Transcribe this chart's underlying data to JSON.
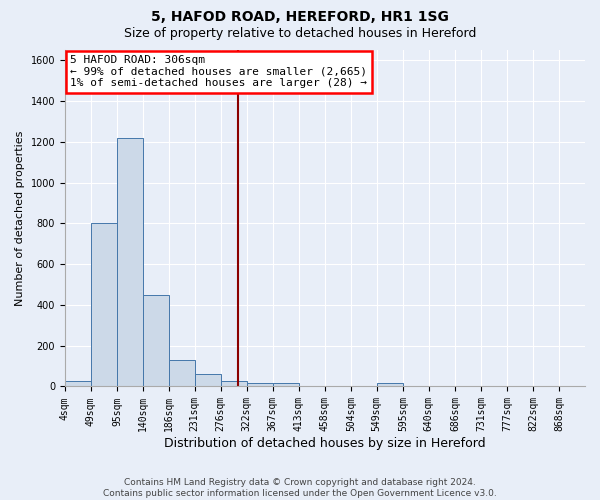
{
  "title1": "5, HAFOD ROAD, HEREFORD, HR1 1SG",
  "title2": "Size of property relative to detached houses in Hereford",
  "xlabel": "Distribution of detached houses by size in Hereford",
  "ylabel": "Number of detached properties",
  "footer": "Contains HM Land Registry data © Crown copyright and database right 2024.\nContains public sector information licensed under the Open Government Licence v3.0.",
  "annotation_line1": "5 HAFOD ROAD: 306sqm",
  "annotation_line2": "← 99% of detached houses are smaller (2,665)",
  "annotation_line3": "1% of semi-detached houses are larger (28) →",
  "property_size": 306,
  "bar_color": "#ccd9e8",
  "bar_edge_color": "#4477aa",
  "vline_color": "#8b0000",
  "bin_edges": [
    4,
    49,
    95,
    140,
    186,
    231,
    276,
    322,
    367,
    413,
    458,
    504,
    549,
    595,
    640,
    686,
    731,
    777,
    822,
    868,
    913
  ],
  "bar_heights": [
    25,
    800,
    1220,
    450,
    130,
    60,
    25,
    15,
    15,
    0,
    0,
    0,
    15,
    0,
    0,
    0,
    0,
    0,
    0,
    0
  ],
  "ylim": [
    0,
    1650
  ],
  "yticks": [
    0,
    200,
    400,
    600,
    800,
    1000,
    1200,
    1400,
    1600
  ],
  "bg_color": "#e8eef8",
  "plot_bg_color": "#e8eef8",
  "grid_color": "#ffffff",
  "title1_fontsize": 10,
  "title2_fontsize": 9,
  "ylabel_fontsize": 8,
  "xlabel_fontsize": 9,
  "tick_fontsize": 7,
  "annotation_fontsize": 8,
  "footer_fontsize": 6.5
}
